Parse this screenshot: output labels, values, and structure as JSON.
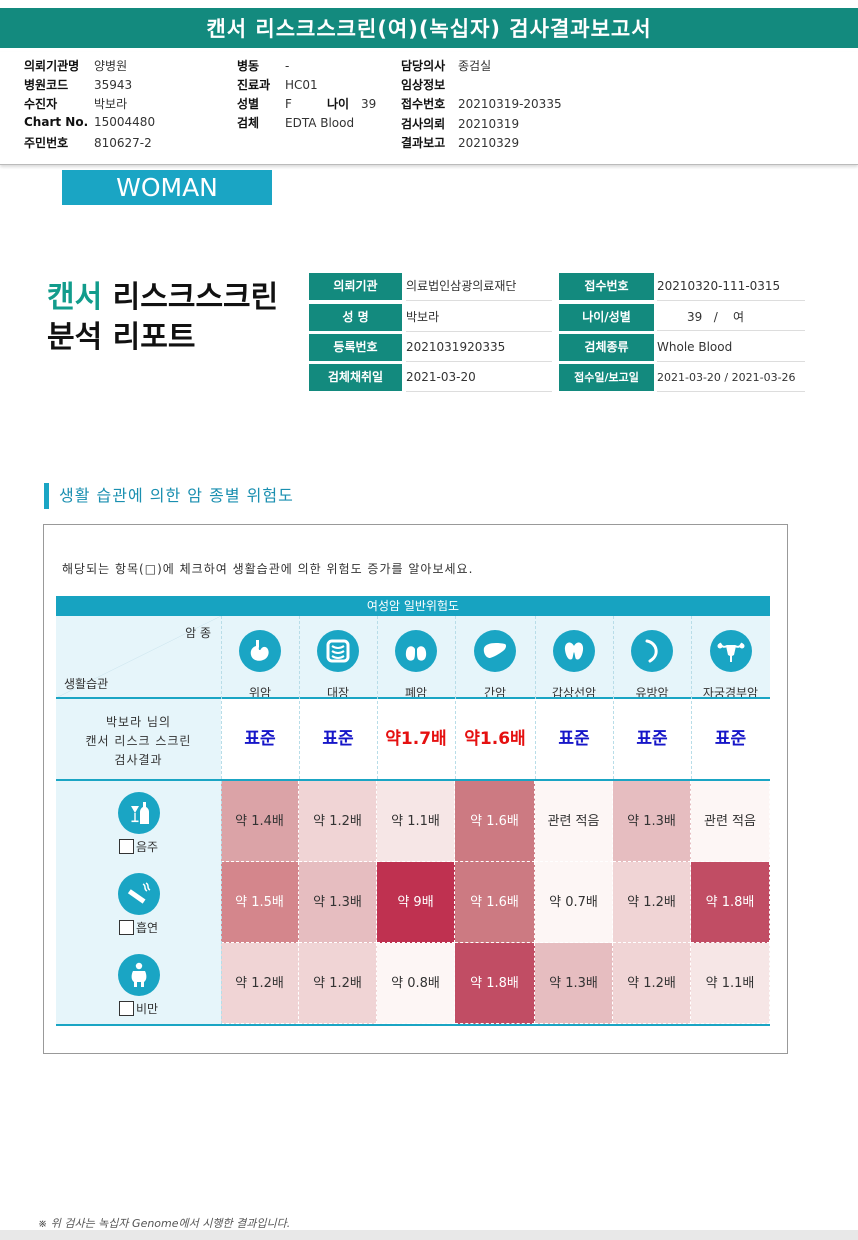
{
  "page_title": "캔서 리스크스크린(여)(녹십자) 검사결과보고서",
  "header": {
    "col1": [
      {
        "k": "의뢰기관명",
        "v": "양병원"
      },
      {
        "k": "병원코드",
        "v": "35943"
      },
      {
        "k": "수진자",
        "v": "박보라"
      },
      {
        "k": "Chart No.",
        "v": "15004480"
      },
      {
        "k": "주민번호",
        "v": "810627-2"
      }
    ],
    "col2": [
      {
        "k": "병동",
        "v": "-"
      },
      {
        "k": "진료과",
        "v": "HC01"
      },
      {
        "k": "성별",
        "v": "F"
      },
      {
        "k": "검체",
        "v": "EDTA Blood"
      }
    ],
    "age": {
      "k": "나이",
      "v": "39"
    },
    "col3": [
      {
        "k": "담당의사",
        "v": "종검실"
      },
      {
        "k": "임상정보",
        "v": ""
      },
      {
        "k": "접수번호",
        "v": "20210319-20335"
      },
      {
        "k": "검사의뢰",
        "v": "20210319"
      },
      {
        "k": "결과보고",
        "v": "20210329"
      }
    ]
  },
  "badge": "WOMAN",
  "report_title": {
    "line1_green": "캔서",
    "line1_dark": "리스크스크린",
    "line2": "분석 리포트"
  },
  "info": {
    "left": [
      {
        "label": "의뢰기관",
        "value": "의료법인삼광의료재단"
      },
      {
        "label": "성 명",
        "value": "박보라"
      },
      {
        "label": "등록번호",
        "value": "2021031920335"
      },
      {
        "label": "검체채취일",
        "value": "2021-03-20"
      }
    ],
    "right": [
      {
        "label": "접수번호",
        "value": "20210320-111-0315"
      },
      {
        "label": "나이/성별",
        "value": "39   /    여"
      },
      {
        "label": "검체종류",
        "value": "Whole Blood"
      },
      {
        "label": "접수일/보고일",
        "value": "2021-03-20 / 2021-03-26"
      }
    ]
  },
  "section_title": "생활 습관에 의한 암 종별 위험도",
  "note": "해당되는 항목(□)에 체크하여 생활습관에 의한 위험도 증가를 알아보세요.",
  "table": {
    "title": "여성암 일반위험도",
    "corner_top": "암 종",
    "corner_bottom": "생활습관",
    "cancers": [
      {
        "name": "위암",
        "icon": "stomach-icon"
      },
      {
        "name": "대장",
        "icon": "colon-icon"
      },
      {
        "name": "폐암",
        "icon": "lung-icon"
      },
      {
        "name": "간암",
        "icon": "liver-icon"
      },
      {
        "name": "갑상선암",
        "icon": "thyroid-icon"
      },
      {
        "name": "유방암",
        "icon": "breast-icon"
      },
      {
        "name": "자궁경부암",
        "icon": "uterus-icon"
      }
    ],
    "result_label": [
      "박보라 님의",
      "캔서 리스크 스크린",
      "검사결과"
    ],
    "results": [
      {
        "text": "표준",
        "color": "#1616c8"
      },
      {
        "text": "표준",
        "color": "#1616c8"
      },
      {
        "text": "약1.7배",
        "color": "#e51010"
      },
      {
        "text": "약1.6배",
        "color": "#e51010"
      },
      {
        "text": "표준",
        "color": "#1616c8"
      },
      {
        "text": "표준",
        "color": "#1616c8"
      },
      {
        "text": "표준",
        "color": "#1616c8"
      }
    ],
    "rows": [
      {
        "label": "음주",
        "icon": "alcohol-icon",
        "cells": [
          {
            "text": "약 1.4배",
            "bg": "#dba3a7",
            "fg": "#333333"
          },
          {
            "text": "약 1.2배",
            "bg": "#f0d4d5",
            "fg": "#333333"
          },
          {
            "text": "약 1.1배",
            "bg": "#f6e6e6",
            "fg": "#333333"
          },
          {
            "text": "약 1.6배",
            "bg": "#cc7a82",
            "fg": "#ffffff"
          },
          {
            "text": "관련 적음",
            "bg": "#fdf6f5",
            "fg": "#333333"
          },
          {
            "text": "약 1.3배",
            "bg": "#e6bdc0",
            "fg": "#333333"
          },
          {
            "text": "관련 적음",
            "bg": "#fdf6f5",
            "fg": "#333333"
          }
        ]
      },
      {
        "label": "흡연",
        "icon": "smoking-icon",
        "cells": [
          {
            "text": "약 1.5배",
            "bg": "#d4868c",
            "fg": "#ffffff"
          },
          {
            "text": "약 1.3배",
            "bg": "#e6bdc0",
            "fg": "#333333"
          },
          {
            "text": "약 9배",
            "bg": "#bf3150",
            "fg": "#ffffff"
          },
          {
            "text": "약 1.6배",
            "bg": "#cc7a82",
            "fg": "#ffffff"
          },
          {
            "text": "약 0.7배",
            "bg": "#fdf6f5",
            "fg": "#333333"
          },
          {
            "text": "약 1.2배",
            "bg": "#f0d4d5",
            "fg": "#333333"
          },
          {
            "text": "약 1.8배",
            "bg": "#c14d64",
            "fg": "#ffffff"
          }
        ]
      },
      {
        "label": "비만",
        "icon": "obesity-icon",
        "cells": [
          {
            "text": "약 1.2배",
            "bg": "#f0d4d5",
            "fg": "#333333"
          },
          {
            "text": "약 1.2배",
            "bg": "#f0d4d5",
            "fg": "#333333"
          },
          {
            "text": "약 0.8배",
            "bg": "#fdf6f5",
            "fg": "#333333"
          },
          {
            "text": "약 1.8배",
            "bg": "#c14d64",
            "fg": "#ffffff"
          },
          {
            "text": "약 1.3배",
            "bg": "#e6bdc0",
            "fg": "#333333"
          },
          {
            "text": "약 1.2배",
            "bg": "#f0d4d5",
            "fg": "#333333"
          },
          {
            "text": "약 1.1배",
            "bg": "#f6e6e6",
            "fg": "#333333"
          }
        ]
      }
    ]
  },
  "footer": "※ 위 검사는 녹십자 Genome에서 시행한 결과입니다."
}
